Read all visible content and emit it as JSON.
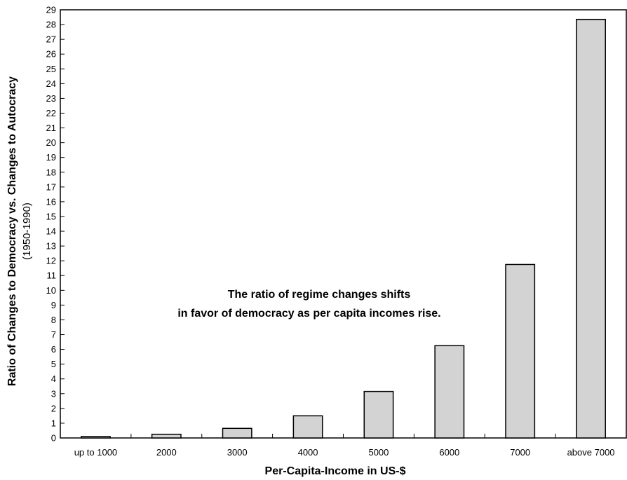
{
  "chart_data": {
    "type": "bar",
    "categories": [
      "up to 1000",
      "2000",
      "3000",
      "4000",
      "5000",
      "6000",
      "7000",
      "above 7000"
    ],
    "values": [
      0.1,
      0.25,
      0.65,
      1.5,
      3.15,
      6.25,
      11.75,
      28.35
    ],
    "xlabel": "Per-Capita-Income in US-$",
    "ylabel": "Ratio of Changes to Democracy vs. Changes to Autocracy",
    "ylabel_sub": "(1950-1990)",
    "ylim": [
      0,
      29
    ],
    "yticks": [
      "0",
      "1",
      "2",
      "3",
      "4",
      "5",
      "6",
      "7",
      "8",
      "9",
      "10",
      "11",
      "12",
      "13",
      "14",
      "15",
      "16",
      "17",
      "18",
      "19",
      "20",
      "21",
      "22",
      "23",
      "24",
      "25",
      "26",
      "27",
      "28",
      "29"
    ],
    "annotation": {
      "line1": "The ratio of regime changes shifts",
      "line2": "in favor of democracy as per capita incomes rise."
    },
    "grid": false,
    "legend": "none",
    "colors": {
      "bar_fill": "#d3d3d3",
      "bar_stroke": "#000000",
      "axis": "#000000"
    }
  }
}
